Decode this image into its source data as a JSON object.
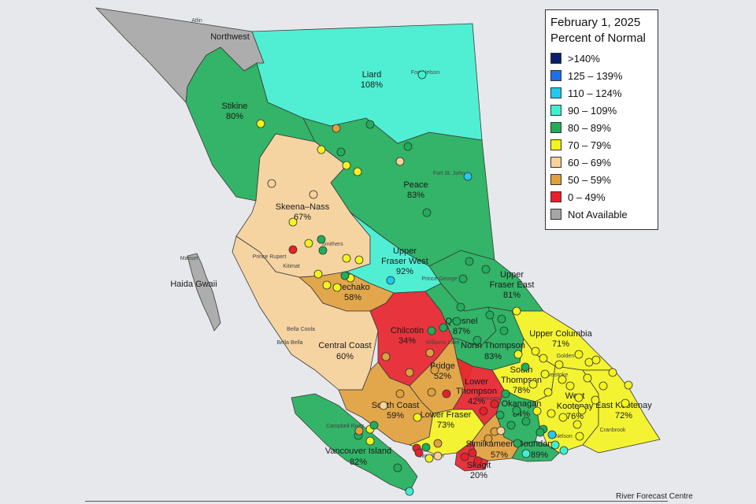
{
  "legend": {
    "date": "February 1, 2025",
    "subtitle": "Percent of Normal",
    "items": [
      {
        "label": ">140%",
        "color": "#0a1f6b"
      },
      {
        "label": "125 – 139%",
        "color": "#1e6ee8"
      },
      {
        "label": "110 – 124%",
        "color": "#22c8f0"
      },
      {
        "label": "90 – 109%",
        "color": "#3ff0d0"
      },
      {
        "label": "80 – 89%",
        "color": "#1fae5a"
      },
      {
        "label": "70 – 79%",
        "color": "#f4f41e"
      },
      {
        "label": "60 – 69%",
        "color": "#f7d29a"
      },
      {
        "label": "50 – 59%",
        "color": "#e1a03a"
      },
      {
        "label": "0 – 49%",
        "color": "#e8202a"
      },
      {
        "label": "Not Available",
        "color": "#a6a6a6"
      }
    ]
  },
  "basins": {
    "northwest": {
      "name": "Northwest",
      "pct": "",
      "color": "#a6a6a6"
    },
    "liard": {
      "name": "Liard",
      "pct": "108%",
      "color": "#3ff0d0"
    },
    "stikine": {
      "name": "Stikine",
      "pct": "80%",
      "color": "#1fae5a"
    },
    "peace": {
      "name": "Peace",
      "pct": "83%",
      "color": "#1fae5a"
    },
    "skeena": {
      "name": "Skeena–Nass",
      "pct": "67%",
      "color": "#f7d29a"
    },
    "ufw": {
      "name": "Upper Fraser West",
      "pct": "92%",
      "color": "#3ff0d0"
    },
    "ufe": {
      "name": "Upper Fraser East",
      "pct": "81%",
      "color": "#1fae5a"
    },
    "nechako": {
      "name": "Nechako",
      "pct": "58%",
      "color": "#e1a03a"
    },
    "central_coast": {
      "name": "Central Coast",
      "pct": "60%",
      "color": "#f7d29a"
    },
    "chilcotin": {
      "name": "Chilcotin",
      "pct": "34%",
      "color": "#e8202a"
    },
    "quesnel": {
      "name": "Quesnel",
      "pct": "87%",
      "color": "#1fae5a"
    },
    "north_thompson": {
      "name": "North Thompson",
      "pct": "83%",
      "color": "#1fae5a"
    },
    "upper_columbia": {
      "name": "Upper Columbia",
      "pct": "71%",
      "color": "#f4f41e"
    },
    "south_thompson": {
      "name": "South Thompson",
      "pct": "78%",
      "color": "#f4f41e"
    },
    "bridge": {
      "name": "Bridge",
      "pct": "52%",
      "color": "#e1a03a"
    },
    "lower_thompson": {
      "name": "Lower Thompson",
      "pct": "42%",
      "color": "#e8202a"
    },
    "south_coast": {
      "name": "South Coast",
      "pct": "59%",
      "color": "#e1a03a"
    },
    "lower_fraser": {
      "name": "Lower Fraser",
      "pct": "73%",
      "color": "#f4f41e"
    },
    "okanagan": {
      "name": "Okanagan",
      "pct": "84%",
      "color": "#1fae5a"
    },
    "west_kootenay": {
      "name": "West Kootenay",
      "pct": "76%",
      "color": "#f4f41e"
    },
    "east_kootenay": {
      "name": "East Kootenay",
      "pct": "72%",
      "color": "#f4f41e"
    },
    "similkameen": {
      "name": "Similkameen",
      "pct": "57%",
      "color": "#e1a03a"
    },
    "boundary": {
      "name": "Boundary",
      "pct": "89%",
      "color": "#1fae5a"
    },
    "skagit": {
      "name": "Skagit",
      "pct": "20%",
      "color": "#e8202a"
    },
    "vancouver_island": {
      "name": "Vancouver Island",
      "pct": "82%",
      "color": "#1fae5a"
    },
    "haida_gwaii": {
      "name": "Haida Gwaii",
      "pct": "",
      "color": "#a6a6a6"
    }
  },
  "places": {
    "atlin": "Atlin",
    "fort_nelson": "Fort Nelson",
    "fort_st_john": "Fort St. John",
    "smithers": "Smithers",
    "prince_rupert": "Prince Rupert",
    "kitimat": "Kitimat",
    "masset": "Masset",
    "prince_george": "Prince George",
    "bella_coola": "Bella Coola",
    "bella_bella": "Bella Bella",
    "williams_lake": "Williams Lake",
    "golden": "Golden",
    "revelstoke": "Revelstoke",
    "kamloops": "Kamloops",
    "nelson": "Nelson",
    "cranbrook": "Cranbrook",
    "campbell_river": "Campbell River",
    "vancouver": "Vancouver"
  },
  "credit": "River Forecast Centre"
}
